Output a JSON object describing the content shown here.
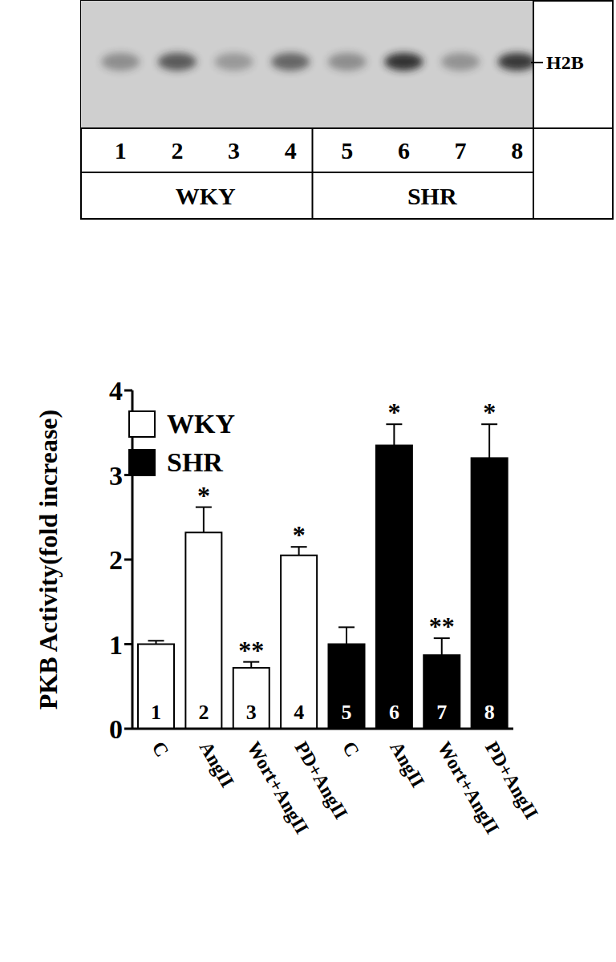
{
  "blot": {
    "band_label": "H2B",
    "lane_labels": [
      1,
      2,
      3,
      4,
      5,
      6,
      7,
      8
    ],
    "groups": [
      {
        "label": "WKY",
        "lanes": [
          1,
          2,
          3,
          4
        ]
      },
      {
        "label": "SHR",
        "lanes": [
          5,
          6,
          7,
          8
        ]
      }
    ]
  },
  "chart_data": {
    "type": "bar",
    "y_label": "PKB Activity(fold increase)",
    "categories": [
      "C",
      "AngII",
      "Wort+AngII",
      "PD+AngII",
      "C",
      "AngII",
      "Wort+AngII",
      "PD+AngII"
    ],
    "ylim": [
      0,
      4
    ],
    "yticks": [
      0,
      1,
      2,
      3,
      4
    ],
    "legend": "upper left",
    "stacked": true,
    "bar_numbers": [
      1,
      2,
      3,
      4,
      5,
      6,
      7,
      8
    ],
    "series": [
      {
        "name": "WKY",
        "color": "#ffffff",
        "values": [
          1.0,
          2.32,
          0.72,
          2.05,
          null,
          null,
          null,
          null
        ],
        "errors": [
          0.04,
          0.3,
          0.07,
          0.1,
          null,
          null,
          null,
          null
        ],
        "annotations": [
          null,
          "*",
          "**",
          "*",
          null,
          null,
          null,
          null
        ]
      },
      {
        "name": "SHR",
        "color": "#000000",
        "values": [
          null,
          null,
          null,
          null,
          1.0,
          3.35,
          0.87,
          3.2
        ],
        "errors": [
          null,
          null,
          null,
          null,
          0.2,
          0.25,
          0.2,
          0.4
        ],
        "annotations": [
          null,
          null,
          null,
          null,
          null,
          "*",
          "**",
          "*"
        ]
      }
    ]
  }
}
